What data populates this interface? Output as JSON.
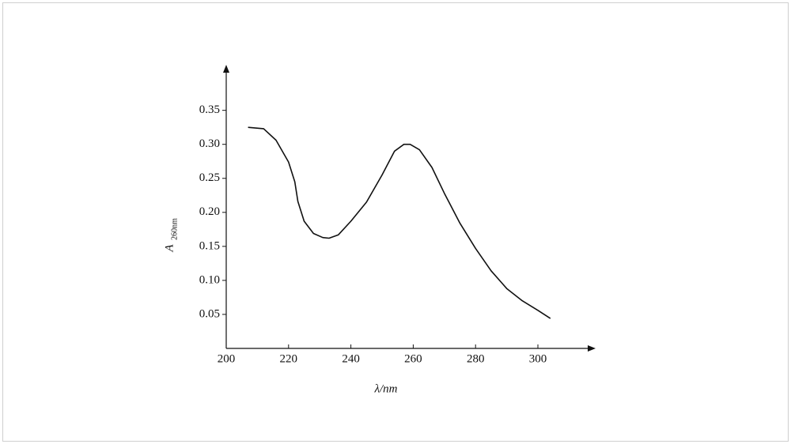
{
  "chart_data": {
    "type": "line",
    "x_label": "λ/nm",
    "y_label": "A",
    "y_label_sub": "260nm",
    "x": [
      207,
      212,
      216,
      220,
      222,
      223,
      225,
      228,
      231,
      233,
      236,
      240,
      245,
      250,
      254,
      257,
      259,
      262,
      266,
      270,
      275,
      280,
      285,
      290,
      295,
      300,
      304
    ],
    "series": [
      {
        "color": "#111111",
        "values": [
          0.325,
          0.323,
          0.306,
          0.274,
          0.245,
          0.216,
          0.187,
          0.169,
          0.163,
          0.162,
          0.167,
          0.187,
          0.215,
          0.255,
          0.29,
          0.3,
          0.3,
          0.292,
          0.266,
          0.228,
          0.184,
          0.147,
          0.114,
          0.088,
          0.07,
          0.056,
          0.044
        ]
      }
    ],
    "xlim": [
      200,
      317
    ],
    "ylim": [
      0,
      0.41
    ],
    "xticks": [
      200,
      220,
      240,
      260,
      280,
      300
    ],
    "yticks": [
      0.05,
      {
        "value": 0.1,
        "label": "0.10"
      },
      0.15,
      {
        "value": 0.2,
        "label": "0.20"
      },
      0.25,
      {
        "value": 0.3,
        "label": "0.30"
      },
      0.35
    ]
  }
}
